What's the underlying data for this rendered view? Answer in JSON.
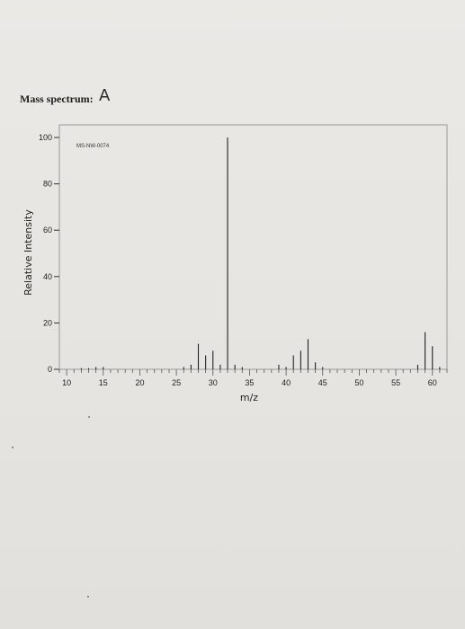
{
  "page": {
    "heading": "Mass spectrum:",
    "handwritten_label": "A"
  },
  "chart_data": {
    "type": "bar",
    "series_label": "MS-NW-0074",
    "xlabel": "m/z",
    "ylabel": "Relative Intensity",
    "xlim": [
      9,
      62
    ],
    "ylim": [
      0,
      100
    ],
    "x_ticks": [
      10,
      15,
      20,
      25,
      30,
      35,
      40,
      45,
      50,
      55,
      60
    ],
    "y_ticks": [
      0,
      20,
      40,
      60,
      80,
      100
    ],
    "grid": false,
    "points": [
      {
        "x": 12,
        "y": 0.5
      },
      {
        "x": 13,
        "y": 0.5
      },
      {
        "x": 14,
        "y": 1
      },
      {
        "x": 15,
        "y": 1
      },
      {
        "x": 26,
        "y": 1
      },
      {
        "x": 27,
        "y": 2
      },
      {
        "x": 28,
        "y": 11
      },
      {
        "x": 29,
        "y": 6
      },
      {
        "x": 30,
        "y": 8
      },
      {
        "x": 31,
        "y": 2
      },
      {
        "x": 32,
        "y": 100
      },
      {
        "x": 33,
        "y": 2
      },
      {
        "x": 34,
        "y": 1
      },
      {
        "x": 39,
        "y": 2
      },
      {
        "x": 40,
        "y": 1
      },
      {
        "x": 41,
        "y": 6
      },
      {
        "x": 42,
        "y": 8
      },
      {
        "x": 43,
        "y": 13
      },
      {
        "x": 44,
        "y": 3
      },
      {
        "x": 45,
        "y": 1
      },
      {
        "x": 58,
        "y": 2
      },
      {
        "x": 59,
        "y": 16
      },
      {
        "x": 60,
        "y": 10
      },
      {
        "x": 61,
        "y": 1
      }
    ]
  }
}
